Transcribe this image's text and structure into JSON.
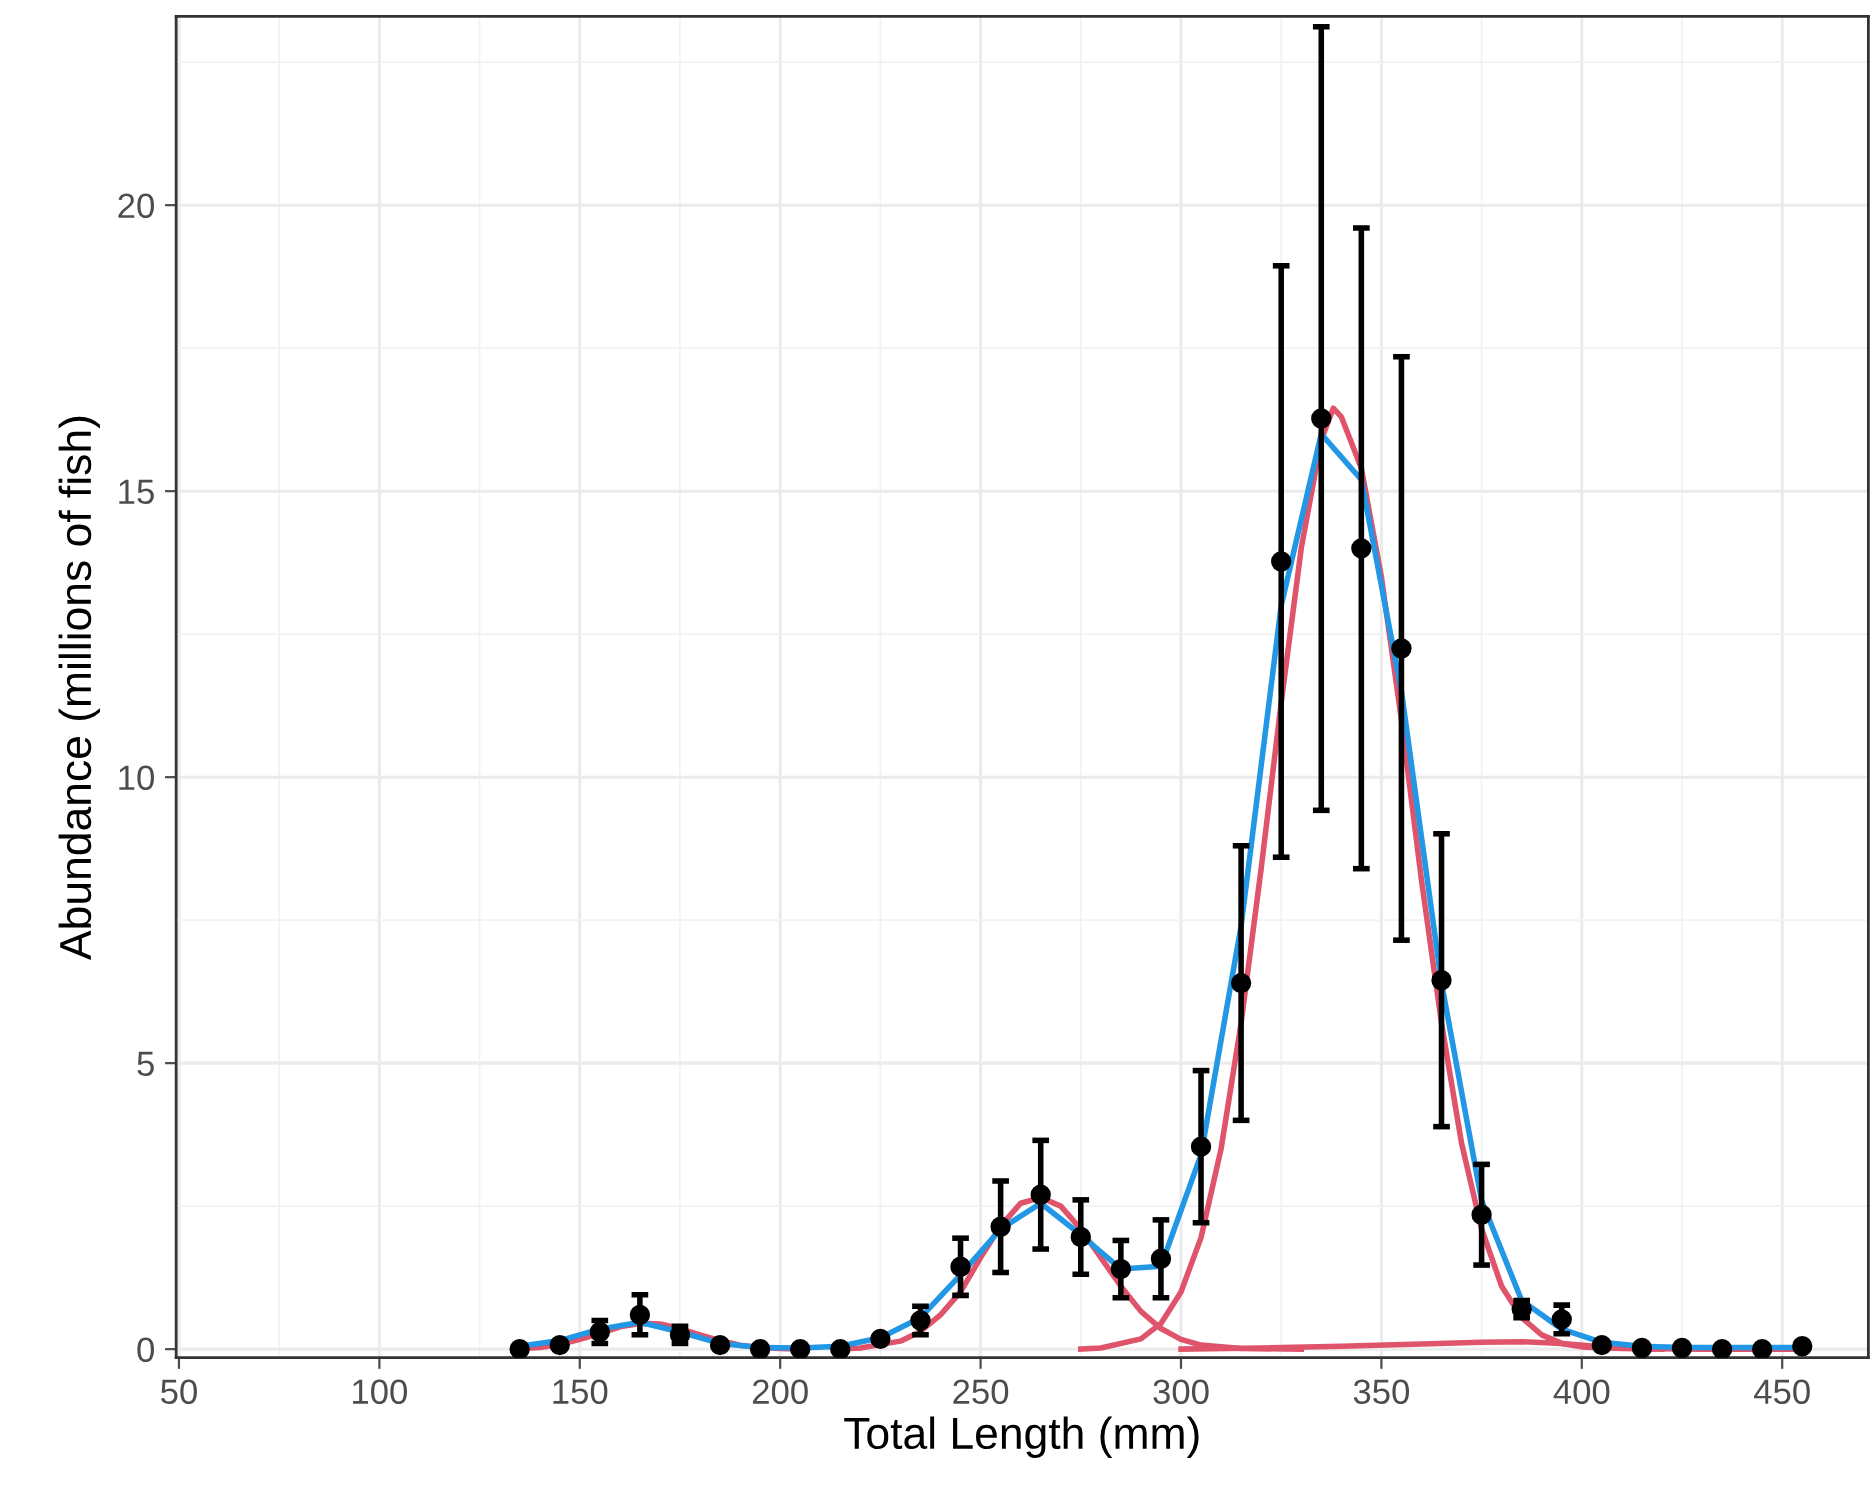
{
  "chart_data": {
    "type": "scatter",
    "xlabel": "Total Length (mm)",
    "ylabel": "Abundance (millions of fish)",
    "xlim": [
      49.3,
      471.5
    ],
    "xticks": [
      50,
      100,
      150,
      200,
      250,
      300,
      350,
      400,
      450
    ],
    "ylim": [
      -0.15,
      23.3
    ],
    "yticks": [
      0,
      5,
      10,
      15,
      20
    ],
    "grid": true,
    "series": [
      {
        "type": "line",
        "color": "#df536b",
        "marker": "none",
        "line_style": "solid",
        "x": [
          135,
          140,
          145,
          150,
          155,
          160,
          165,
          170,
          175,
          180,
          185,
          190,
          195,
          200,
          205
        ],
        "values": [
          0.01,
          0.03,
          0.08,
          0.17,
          0.27,
          0.39,
          0.45,
          0.44,
          0.36,
          0.25,
          0.15,
          0.07,
          0.03,
          0.01,
          0
        ]
      },
      {
        "type": "line",
        "color": "#df536b",
        "marker": "none",
        "line_style": "solid",
        "x": [
          215,
          220,
          230,
          235,
          240,
          245,
          250,
          255,
          260,
          265,
          270,
          275,
          280,
          285,
          290,
          295,
          300,
          305,
          315,
          330
        ],
        "values": [
          0,
          0.02,
          0.14,
          0.31,
          0.6,
          1.0,
          1.6,
          2.15,
          2.55,
          2.65,
          2.5,
          2.1,
          1.6,
          1.1,
          0.66,
          0.36,
          0.17,
          0.07,
          0.01,
          0
        ]
      },
      {
        "type": "line",
        "color": "#df536b",
        "marker": "none",
        "line_style": "solid",
        "x": [
          275,
          280,
          290,
          295,
          300,
          305,
          310,
          315,
          320,
          325,
          330,
          335,
          338,
          340,
          345,
          350,
          355,
          360,
          365,
          370,
          375,
          380,
          385,
          390,
          395,
          400,
          410,
          420
        ],
        "values": [
          0,
          0.02,
          0.18,
          0.45,
          1.0,
          1.95,
          3.5,
          5.7,
          8.4,
          11.3,
          14.0,
          15.9,
          16.45,
          16.3,
          15.4,
          13.5,
          11.0,
          8.2,
          5.7,
          3.6,
          2.1,
          1.1,
          0.55,
          0.25,
          0.1,
          0.04,
          0.01,
          0
        ]
      },
      {
        "type": "line",
        "color": "#df536b",
        "marker": "none",
        "line_style": "solid",
        "x": [
          300,
          320,
          340,
          360,
          375,
          385,
          395,
          405,
          415,
          430,
          455
        ],
        "values": [
          0,
          0.02,
          0.05,
          0.09,
          0.12,
          0.13,
          0.1,
          0.04,
          0.01,
          0,
          0
        ]
      },
      {
        "type": "line",
        "color": "#2297e6",
        "marker": "none",
        "line_style": "solid",
        "x": [
          135,
          145,
          155,
          165,
          175,
          185,
          195,
          205,
          215,
          225,
          235,
          245,
          255,
          265,
          275,
          285,
          295,
          305,
          315,
          325,
          335,
          345,
          355,
          365,
          375,
          385,
          395,
          405,
          415,
          425,
          435,
          445,
          455
        ],
        "values": [
          0.05,
          0.15,
          0.35,
          0.47,
          0.3,
          0.1,
          0.03,
          0.02,
          0.05,
          0.2,
          0.55,
          1.3,
          2.1,
          2.55,
          2.0,
          1.4,
          1.45,
          3.4,
          7.4,
          13.0,
          16.0,
          15.2,
          11.5,
          6.4,
          2.6,
          0.85,
          0.35,
          0.12,
          0.05,
          0.03,
          0.03,
          0.03,
          0.03
        ]
      },
      {
        "color": "#000000",
        "marker": "circle",
        "x": [
          135,
          145,
          155,
          165,
          175,
          185,
          195,
          205,
          215,
          225,
          235,
          245,
          255,
          265,
          275,
          285,
          295,
          305,
          315,
          325,
          335,
          345,
          355,
          365,
          375,
          385,
          395,
          405,
          415,
          425,
          435,
          445,
          455
        ],
        "values": [
          0.0,
          0.07,
          0.3,
          0.6,
          0.25,
          0.07,
          0.0,
          0.0,
          0.0,
          0.18,
          0.5,
          1.44,
          2.14,
          2.7,
          1.96,
          1.4,
          1.58,
          3.54,
          6.4,
          13.77,
          16.27,
          14.0,
          12.25,
          6.45,
          2.35,
          0.7,
          0.52,
          0.07,
          0.02,
          0.02,
          0.0,
          0.0,
          0.05
        ],
        "errors": [
          null,
          null,
          0.2,
          0.35,
          0.15,
          null,
          null,
          null,
          null,
          null,
          0.25,
          0.5,
          0.8,
          0.95,
          0.65,
          0.5,
          0.68,
          1.33,
          2.4,
          5.17,
          6.85,
          5.6,
          5.1,
          2.56,
          0.88,
          0.15,
          0.25,
          null,
          null,
          null,
          null,
          null,
          null
        ]
      }
    ]
  }
}
